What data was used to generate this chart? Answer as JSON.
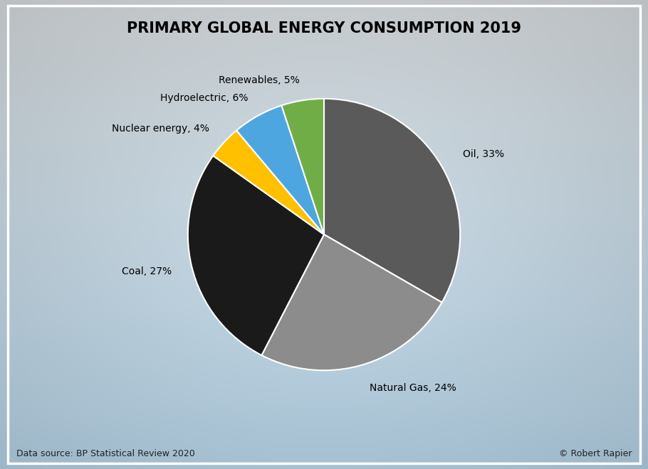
{
  "title": "PRIMARY GLOBAL ENERGY CONSUMPTION 2019",
  "labels": [
    "Oil",
    "Natural Gas",
    "Coal",
    "Nuclear energy",
    "Hydroelectric",
    "Renewables"
  ],
  "values": [
    33,
    24,
    27,
    4,
    6,
    5
  ],
  "colors": [
    "#5a5a5a",
    "#8c8c8c",
    "#1a1a1a",
    "#ffc000",
    "#4da6e0",
    "#70ad47"
  ],
  "startangle": 90,
  "footnote_left": "Data source: BP Statistical Review 2020",
  "footnote_right": "© Robert Rapier",
  "title_fontsize": 15,
  "label_fontsize": 10,
  "footnote_fontsize": 9,
  "wedge_edge_color": "white",
  "wedge_edge_width": 1.5,
  "label_distances": [
    1.18,
    1.18,
    1.15,
    1.15,
    1.15,
    1.15
  ],
  "bg_left_color": "#c8d8e4",
  "bg_right_color": "#e8f2f8",
  "bg_top_color": "#dde6ec",
  "bg_bottom_color": "#cce0ee"
}
